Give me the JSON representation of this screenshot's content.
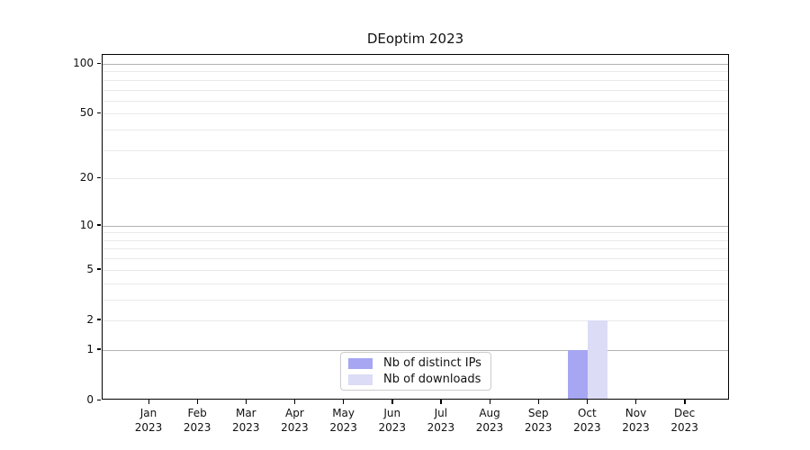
{
  "chart_data": {
    "type": "bar",
    "title": "DEoptim 2023",
    "x": {
      "months": [
        "Jan",
        "Feb",
        "Mar",
        "Apr",
        "May",
        "Jun",
        "Jul",
        "Aug",
        "Sep",
        "Oct",
        "Nov",
        "Dec"
      ],
      "year": "2023"
    },
    "y_axis": {
      "scale": "log10(1+y)",
      "range": [
        0,
        100
      ],
      "tick_values": [
        0,
        1,
        2,
        5,
        10,
        20,
        50,
        100
      ],
      "major_gridlines": [
        1,
        10,
        100
      ],
      "minor_gridlines": [
        2,
        3,
        4,
        5,
        6,
        7,
        8,
        9,
        20,
        30,
        40,
        50,
        60,
        70,
        80,
        90
      ]
    },
    "series": [
      {
        "name": "Nb of distinct IPs",
        "color": "#a6a6f2",
        "values": [
          0,
          0,
          0,
          0,
          0,
          0,
          0,
          0,
          0,
          1,
          0,
          0
        ]
      },
      {
        "name": "Nb of downloads",
        "color": "#dcdcf7",
        "values": [
          0,
          0,
          0,
          0,
          0,
          0,
          0,
          0,
          0,
          2,
          0,
          0
        ]
      }
    ],
    "legend": {
      "position": "bottom-center"
    }
  },
  "colors": {
    "frame": "#000000",
    "major_grid": "#b2b2b2",
    "minor_grid": "#e9e9e9",
    "legend_border": "#cccccc"
  }
}
